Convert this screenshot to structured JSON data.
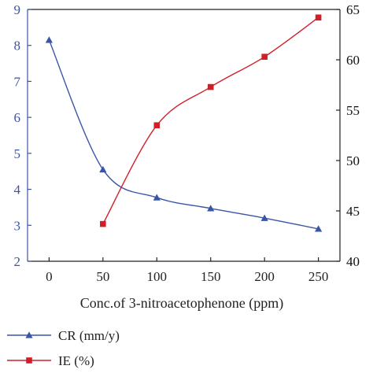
{
  "chart_data": {
    "type": "line",
    "xlabel": "Conc.of 3-nitroacetophenone (ppm)",
    "x_ticks": [
      "0",
      "50",
      "100",
      "150",
      "200",
      "250"
    ],
    "xlim": [
      -20,
      270
    ],
    "y_left": {
      "ylim": [
        2,
        9
      ],
      "ticks": [
        "2",
        "3",
        "4",
        "5",
        "6",
        "7",
        "8",
        "9"
      ],
      "color": "#3a55a8"
    },
    "y_right": {
      "ylim": [
        40,
        65
      ],
      "ticks": [
        "40",
        "45",
        "50",
        "55",
        "60",
        "65"
      ],
      "color": "#111111"
    },
    "grid": false,
    "legend_position": "bottom-left",
    "series": [
      {
        "name": "CR (mm/y)",
        "axis": "left",
        "color": "#3a55a8",
        "marker": "triangle",
        "x": [
          0,
          50,
          100,
          150,
          200,
          250
        ],
        "y": [
          8.15,
          4.55,
          3.77,
          3.47,
          3.2,
          2.9
        ]
      },
      {
        "name": "IE (%)",
        "axis": "right",
        "color": "#d11f2a",
        "marker": "square",
        "x": [
          50,
          100,
          150,
          200,
          250
        ],
        "y": [
          43.7,
          53.5,
          57.3,
          60.3,
          64.2
        ]
      }
    ]
  }
}
